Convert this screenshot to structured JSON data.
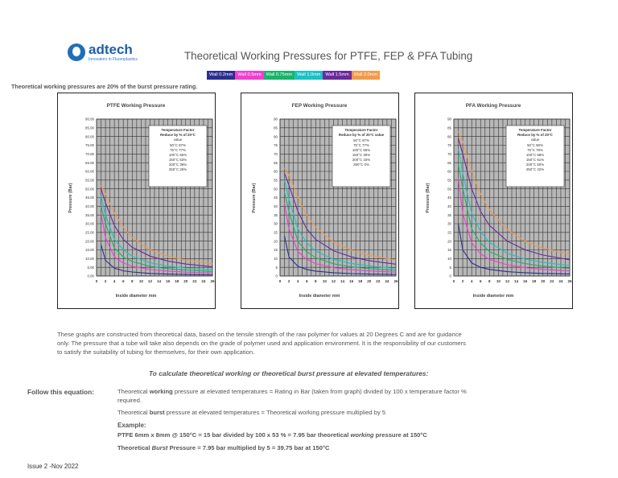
{
  "brand": {
    "name": "adtech",
    "tagline": "Innovators in Fluoroplastics"
  },
  "title": "Theoretical Working Pressures for PTFE, FEP & PFA Tubing",
  "legend": [
    {
      "label": "Wall 0.2mm",
      "color": "#2b2f8f"
    },
    {
      "label": "Wall 0.5mm",
      "color": "#ef3fd0"
    },
    {
      "label": "Wall 0.75mm",
      "color": "#18b46a"
    },
    {
      "label": "Wall 1.0mm",
      "color": "#1bc1c4"
    },
    {
      "label": "Wall 1.5mm",
      "color": "#6b2a9c"
    },
    {
      "label": "Wall 2.0mm",
      "color": "#f39a4a"
    }
  ],
  "note": "Theoretical working pressures are 20% of the burst pressure rating.",
  "paragraph": [
    "These graphs are constructed from theoretical data, based on the tensile strength of the raw polymer for values at 20 Degrees C and are for guidance",
    "only. The pressure that a tube will take also depends on the grade of polymer used and application environment. It is the responsibility of our customers",
    "to satisfy the suitability of tubing for themselves, for their own application."
  ],
  "subheading": "To calculate theoretical working or theoretical burst pressure at elevated temperatures:",
  "follow_label": "Follow this equation:",
  "rule1": {
    "pre": "Theoretical ",
    "bold": "working",
    "post": " pressure at elevated temperatures = Rating in Bar (taken from graph) divided by 100 x temperature factor %",
    "post2": "required."
  },
  "rule2": {
    "pre": "Theoretical ",
    "bold": "burst",
    "post": " pressure at elevated temperatures = Theoretical working pressure multiplied by 5"
  },
  "example_label": "Example:",
  "example1": {
    "pre": "PTFE 6mm x 8mm @ 150°C = 15 bar divided by 100 x 53 % = 7.95 bar theoretical ",
    "ital": "working",
    "post": " pressure at 150°C"
  },
  "example2": {
    "pre": "Theoretical ",
    "ital": "Burst",
    "post": "  Pressure = 7.95 bar multiplied by 5 = 39.75 bar at 150°C"
  },
  "issue": "Issue 2 -Nov 2022",
  "chart_data": [
    {
      "type": "line",
      "title": "PTFE Working Pressure",
      "xlabel": "Inside diameter mm",
      "ylabel": "Pressure (Bar)",
      "xlim": [
        0,
        26
      ],
      "ylim": [
        0,
        90
      ],
      "ytick_step": 5,
      "ytick_decimals": 2,
      "xticks": [
        0,
        2,
        4,
        6,
        8,
        10,
        12,
        14,
        16,
        18,
        20,
        22,
        24,
        26
      ],
      "temp_box": {
        "title": "Temperature Factor",
        "subtitle": "Reduce by % of 20°C",
        "subtitle2": "value",
        "rows": [
          "50°C  87%",
          "75°C  77%",
          "100°C  65%",
          "150°C  53%",
          "200°C  39%",
          "250°C  25%"
        ]
      },
      "series": [
        {
          "values": [
            [
              1,
              18
            ],
            [
              2,
              9
            ],
            [
              4,
              4.5
            ],
            [
              6,
              3
            ],
            [
              8,
              2.3
            ],
            [
              12,
              1.5
            ],
            [
              16,
              1.1
            ],
            [
              20,
              0.9
            ],
            [
              26,
              0.7
            ]
          ]
        },
        {
          "values": [
            [
              1,
              36
            ],
            [
              2,
              22
            ],
            [
              4,
              11
            ],
            [
              6,
              7.5
            ],
            [
              8,
              5.6
            ],
            [
              12,
              3.7
            ],
            [
              16,
              2.8
            ],
            [
              20,
              2.2
            ],
            [
              26,
              1.7
            ]
          ]
        },
        {
          "values": [
            [
              1,
              40
            ],
            [
              2,
              30
            ],
            [
              4,
              16
            ],
            [
              6,
              11
            ],
            [
              8,
              8.3
            ],
            [
              12,
              5.6
            ],
            [
              16,
              4.2
            ],
            [
              20,
              3.4
            ],
            [
              26,
              2.6
            ]
          ]
        },
        {
          "values": [
            [
              1,
              46
            ],
            [
              2,
              35
            ],
            [
              4,
              21
            ],
            [
              6,
              15
            ],
            [
              8,
              11.3
            ],
            [
              12,
              7.6
            ],
            [
              16,
              5.7
            ],
            [
              20,
              4.6
            ],
            [
              26,
              3.5
            ]
          ]
        },
        {
          "values": [
            [
              1,
              50
            ],
            [
              2,
              42
            ],
            [
              4,
              29
            ],
            [
              6,
              21
            ],
            [
              8,
              16.5
            ],
            [
              12,
              11.4
            ],
            [
              16,
              8.6
            ],
            [
              20,
              6.9
            ],
            [
              26,
              5.3
            ]
          ]
        },
        {
          "values": [
            [
              1,
              52
            ],
            [
              2,
              47
            ],
            [
              4,
              36
            ],
            [
              6,
              28
            ],
            [
              8,
              22
            ],
            [
              12,
              15
            ],
            [
              16,
              11.4
            ],
            [
              20,
              9.2
            ],
            [
              26,
              7.1
            ]
          ]
        }
      ]
    },
    {
      "type": "line",
      "title": "FEP Working Pressure",
      "xlabel": "Inside diameter mm",
      "ylabel": "Pressure (Bar)",
      "xlim": [
        0,
        26
      ],
      "ylim": [
        0,
        90
      ],
      "ytick_step": 5,
      "ytick_decimals": 0,
      "xticks": [
        0,
        2,
        4,
        6,
        8,
        10,
        12,
        14,
        16,
        18,
        20,
        22,
        24,
        26
      ],
      "temp_box": {
        "title": "Temperature Factor",
        "subtitle": "Reduce by % of 20°C value",
        "subtitle2": "",
        "rows": [
          "50°C  87%",
          "75°C  77%",
          "100°C  65%",
          "150°C  30%",
          "200°C  15%",
          "250°C  0%"
        ]
      },
      "series": [
        {
          "values": [
            [
              1,
              23
            ],
            [
              2,
              11
            ],
            [
              4,
              5.6
            ],
            [
              6,
              3.8
            ],
            [
              8,
              2.8
            ],
            [
              12,
              1.9
            ],
            [
              16,
              1.4
            ],
            [
              20,
              1.1
            ],
            [
              26,
              0.9
            ]
          ]
        },
        {
          "values": [
            [
              1,
              42
            ],
            [
              2,
              27
            ],
            [
              4,
              14
            ],
            [
              6,
              9.5
            ],
            [
              8,
              7.1
            ],
            [
              12,
              4.8
            ],
            [
              16,
              3.6
            ],
            [
              20,
              2.9
            ],
            [
              26,
              2.2
            ]
          ]
        },
        {
          "values": [
            [
              1,
              48
            ],
            [
              2,
              37
            ],
            [
              4,
              20
            ],
            [
              6,
              14
            ],
            [
              8,
              10.5
            ],
            [
              12,
              7.0
            ],
            [
              16,
              5.3
            ],
            [
              20,
              4.2
            ],
            [
              26,
              3.3
            ]
          ]
        },
        {
          "values": [
            [
              1,
              55
            ],
            [
              2,
              44
            ],
            [
              4,
              27
            ],
            [
              6,
              19
            ],
            [
              8,
              14.3
            ],
            [
              12,
              9.6
            ],
            [
              16,
              7.2
            ],
            [
              20,
              5.8
            ],
            [
              26,
              4.4
            ]
          ]
        },
        {
          "values": [
            [
              1,
              59
            ],
            [
              2,
              52
            ],
            [
              4,
              37
            ],
            [
              6,
              27
            ],
            [
              8,
              21
            ],
            [
              12,
              14.5
            ],
            [
              16,
              11
            ],
            [
              20,
              8.8
            ],
            [
              26,
              6.8
            ]
          ]
        },
        {
          "values": [
            [
              1,
              62
            ],
            [
              2,
              58
            ],
            [
              4,
              45
            ],
            [
              6,
              35
            ],
            [
              8,
              28
            ],
            [
              12,
              19.5
            ],
            [
              16,
              14.8
            ],
            [
              20,
              11.9
            ],
            [
              26,
              9.2
            ]
          ]
        }
      ]
    },
    {
      "type": "line",
      "title": "PFA Working Pressure",
      "xlabel": "Inside diameter mm",
      "ylabel": "Pressure (Bar)",
      "xlim": [
        0,
        26
      ],
      "ylim": [
        0,
        90
      ],
      "ytick_step": 5,
      "ytick_decimals": 0,
      "xticks": [
        0,
        2,
        4,
        6,
        8,
        10,
        12,
        14,
        16,
        18,
        20,
        22,
        24,
        26
      ],
      "temp_box": {
        "title": "Temperature Factor",
        "subtitle": "Reduce by % of 20°C",
        "subtitle2": "value",
        "rows": [
          "50°C  90%",
          "75°C  79%",
          "100°C  68%",
          "150°C  61%",
          "200°C  50%",
          "250°C  42%"
        ]
      },
      "series": [
        {
          "values": [
            [
              1,
              30
            ],
            [
              2,
              15
            ],
            [
              4,
              7.5
            ],
            [
              6,
              5.0
            ],
            [
              8,
              3.8
            ],
            [
              12,
              2.5
            ],
            [
              16,
              1.9
            ],
            [
              20,
              1.5
            ],
            [
              26,
              1.2
            ]
          ]
        },
        {
          "values": [
            [
              1,
              56
            ],
            [
              2,
              36
            ],
            [
              4,
              19
            ],
            [
              6,
              12.7
            ],
            [
              8,
              9.5
            ],
            [
              12,
              6.4
            ],
            [
              16,
              4.8
            ],
            [
              20,
              3.8
            ],
            [
              26,
              2.9
            ]
          ]
        },
        {
          "values": [
            [
              1,
              64
            ],
            [
              2,
              50
            ],
            [
              4,
              27
            ],
            [
              6,
              19
            ],
            [
              8,
              14
            ],
            [
              12,
              9.5
            ],
            [
              16,
              7.1
            ],
            [
              20,
              5.7
            ],
            [
              26,
              4.4
            ]
          ]
        },
        {
          "values": [
            [
              1,
              73
            ],
            [
              2,
              59
            ],
            [
              4,
              36
            ],
            [
              6,
              25.5
            ],
            [
              8,
              19.3
            ],
            [
              12,
              13
            ],
            [
              16,
              9.7
            ],
            [
              20,
              7.8
            ],
            [
              26,
              6.0
            ]
          ]
        },
        {
          "values": [
            [
              1,
              79
            ],
            [
              2,
              70
            ],
            [
              4,
              50
            ],
            [
              6,
              37
            ],
            [
              8,
              29
            ],
            [
              12,
              20
            ],
            [
              16,
              15
            ],
            [
              20,
              12
            ],
            [
              26,
              9.3
            ]
          ]
        },
        {
          "values": [
            [
              1,
              83
            ],
            [
              2,
              77
            ],
            [
              4,
              60
            ],
            [
              6,
              47
            ],
            [
              8,
              38
            ],
            [
              12,
              26.5
            ],
            [
              16,
              20
            ],
            [
              20,
              16
            ],
            [
              26,
              12.4
            ]
          ]
        }
      ]
    }
  ]
}
